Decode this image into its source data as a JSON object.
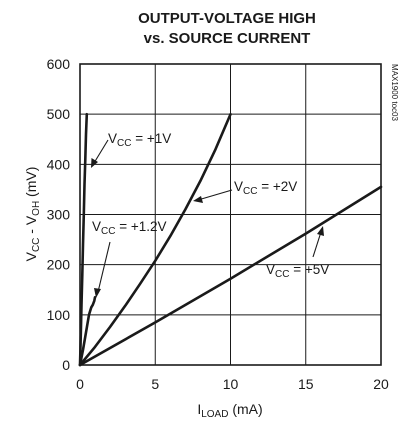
{
  "chart_data": {
    "type": "line",
    "title": "OUTPUT-VOLTAGE HIGH",
    "subtitle": "vs. SOURCE CURRENT",
    "xlabel_main": "I",
    "xlabel_sub": "LOAD",
    "xlabel_unit": " (mA)",
    "ylabel_v1": "V",
    "ylabel_s1": "CC",
    "ylabel_mid": " - V",
    "ylabel_s2": "OH",
    "ylabel_unit": " (mV)",
    "side_label": "MAX1900 toc03",
    "xlim": [
      0,
      20
    ],
    "ylim": [
      0,
      600
    ],
    "x_ticks": [
      0,
      5,
      10,
      15,
      20
    ],
    "y_ticks": [
      0,
      100,
      200,
      300,
      400,
      500,
      600
    ],
    "x_tick_labels": [
      "0",
      "5",
      "10",
      "15",
      "20"
    ],
    "y_tick_labels": [
      "0",
      "100",
      "200",
      "300",
      "400",
      "500",
      "600"
    ],
    "grid": true,
    "series": [
      {
        "label_main": "V",
        "label_sub": "CC",
        "label_value": " = +1V",
        "x": [
          0,
          0.05,
          0.1,
          0.15,
          0.2,
          0.25,
          0.3,
          0.35,
          0.4,
          0.45
        ],
        "y": [
          0,
          60,
          120,
          180,
          240,
          300,
          360,
          410,
          460,
          500
        ]
      },
      {
        "label_main": "V",
        "label_sub": "CC",
        "label_value": " = +1.2V",
        "x": [
          0,
          0.2,
          0.4,
          0.6,
          0.75,
          0.85,
          0.95,
          1.0
        ],
        "y": [
          0,
          30,
          65,
          100,
          115,
          120,
          128,
          135
        ]
      },
      {
        "label_main": "V",
        "label_sub": "CC",
        "label_value": " = +2V",
        "x": [
          0,
          1,
          2,
          3,
          4,
          5,
          6,
          7,
          8,
          9,
          10
        ],
        "y": [
          0,
          36,
          76,
          118,
          162,
          208,
          257,
          310,
          367,
          430,
          500
        ]
      },
      {
        "label_main": "V",
        "label_sub": "CC",
        "label_value": " = +5V",
        "x": [
          0,
          5,
          10,
          15,
          20
        ],
        "y": [
          0,
          85,
          172,
          262,
          355
        ]
      }
    ]
  }
}
